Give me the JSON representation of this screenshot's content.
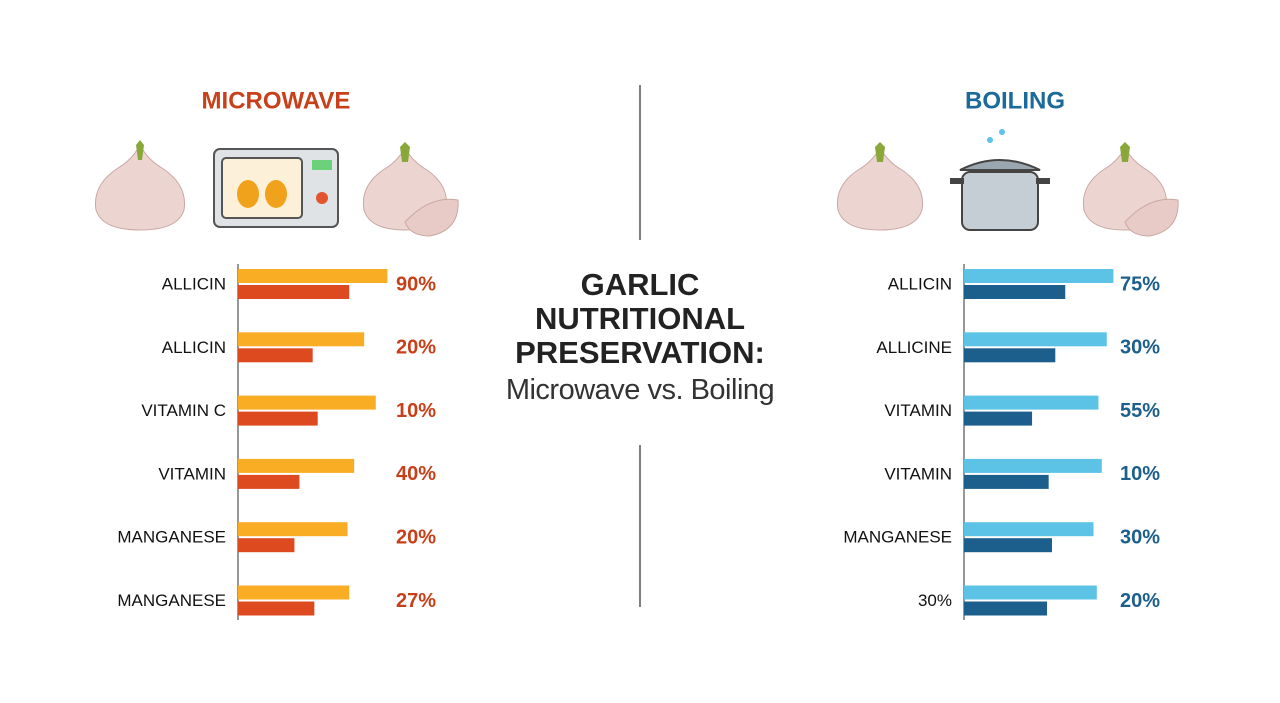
{
  "title": "GARLIC NUTRITIONAL PRESERVATION:",
  "subtitle": "Microwave vs. Boiling",
  "chart_data": [
    {
      "type": "bar",
      "orientation": "horizontal",
      "title": "MICROWAVE",
      "title_color": "#c8401a",
      "categories": [
        "ALLICIN",
        "ALLICIN",
        "VITAMIN C",
        "VITAMIN",
        "MANGANESE",
        "MANGANESE"
      ],
      "series": [
        {
          "color": "#f9ad25",
          "values": [
            90,
            76,
            83,
            70,
            66,
            67
          ]
        },
        {
          "color": "#de4a1f",
          "values": [
            67,
            45,
            48,
            37,
            34,
            46
          ]
        }
      ],
      "labels": [
        "90%",
        "20%",
        "10%",
        "40%",
        "20%",
        "27%"
      ],
      "label_color": "#c8401a",
      "xlim": [
        0,
        100
      ]
    },
    {
      "type": "bar",
      "orientation": "horizontal",
      "title": "BOILING",
      "title_color": "#1b6a9a",
      "categories": [
        "ALLICIN",
        "ALLICINE",
        "VITAMIN",
        "VITAMIN",
        "MANGANESE",
        "30%"
      ],
      "series": [
        {
          "color": "#5cc3e6",
          "values": [
            90,
            86,
            81,
            83,
            78,
            80
          ]
        },
        {
          "color": "#1c5f8c",
          "values": [
            61,
            55,
            41,
            51,
            53,
            50
          ]
        }
      ],
      "labels": [
        "75%",
        "30%",
        "55%",
        "10%",
        "30%",
        "20%"
      ],
      "label_color": "#1c5f8c",
      "xlim": [
        0,
        100
      ]
    }
  ]
}
